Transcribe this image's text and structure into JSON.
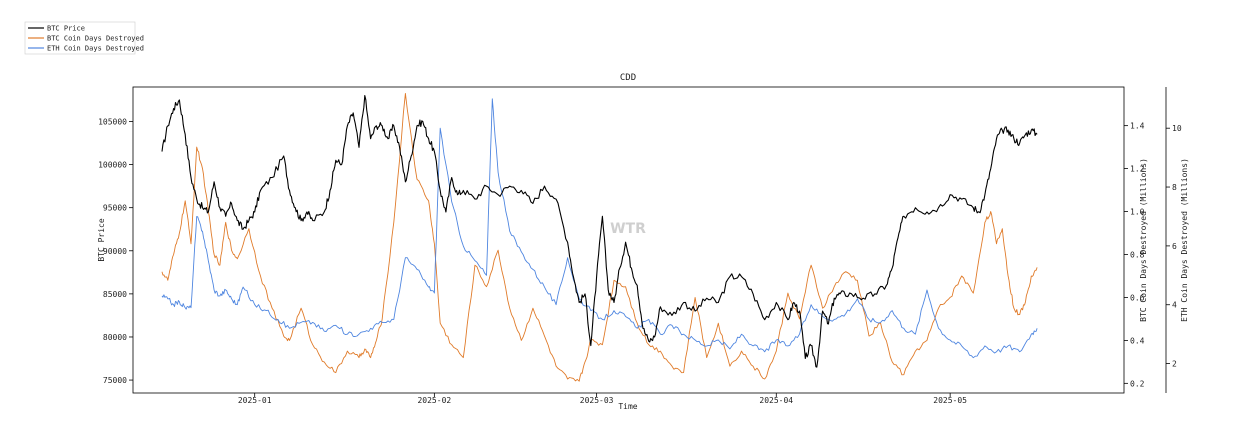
{
  "chart_data": {
    "type": "line",
    "title": "CDD",
    "xlabel": "Time",
    "watermark": "WTR",
    "x_ticks": [
      "2025-01",
      "2025-02",
      "2025-03",
      "2025-04",
      "2025-05"
    ],
    "x_range": [
      "2024-12-11",
      "2025-05-31"
    ],
    "axes": {
      "left": {
        "label": "BTC Price",
        "range": [
          73500,
          109000
        ],
        "ticks": [
          75000,
          80000,
          85000,
          90000,
          95000,
          100000,
          105000
        ]
      },
      "right1": {
        "label": "BTC Coin Days Destroyed (Millions)",
        "range": [
          0.155,
          1.58
        ],
        "ticks": [
          0.2,
          0.4,
          0.6,
          0.8,
          1.0,
          1.2,
          1.4
        ]
      },
      "right2": {
        "label": "ETH Coin Days Destroyed (Millions)",
        "range": [
          1.0,
          11.4
        ],
        "ticks": [
          2,
          4,
          6,
          8,
          10
        ]
      }
    },
    "legend": {
      "placement": "top-left",
      "entries": [
        "BTC Price",
        "BTC Coin Days Destroyed",
        "ETH Coin Days Destroyed"
      ]
    },
    "series": [
      {
        "name": "BTC Price",
        "axis": "left",
        "color": "#000000",
        "x": [
          "2024-12-16",
          "2024-12-17",
          "2024-12-18",
          "2024-12-19",
          "2024-12-20",
          "2024-12-21",
          "2024-12-22",
          "2024-12-23",
          "2024-12-24",
          "2024-12-25",
          "2024-12-26",
          "2024-12-27",
          "2024-12-28",
          "2024-12-29",
          "2024-12-30",
          "2024-12-31",
          "2025-01-01",
          "2025-01-02",
          "2025-01-04",
          "2025-01-06",
          "2025-01-07",
          "2025-01-08",
          "2025-01-09",
          "2025-01-10",
          "2025-01-11",
          "2025-01-13",
          "2025-01-14",
          "2025-01-15",
          "2025-01-16",
          "2025-01-17",
          "2025-01-18",
          "2025-01-19",
          "2025-01-20",
          "2025-01-21",
          "2025-01-22",
          "2025-01-23",
          "2025-01-24",
          "2025-01-25",
          "2025-01-26",
          "2025-01-27",
          "2025-01-28",
          "2025-01-29",
          "2025-01-30",
          "2025-01-31",
          "2025-02-01",
          "2025-02-02",
          "2025-02-03",
          "2025-02-04",
          "2025-02-05",
          "2025-02-06",
          "2025-02-08",
          "2025-02-10",
          "2025-02-12",
          "2025-02-14",
          "2025-02-16",
          "2025-02-18",
          "2025-02-20",
          "2025-02-22",
          "2025-02-24",
          "2025-02-25",
          "2025-02-26",
          "2025-02-27",
          "2025-02-28",
          "2025-03-01",
          "2025-03-02",
          "2025-03-03",
          "2025-03-04",
          "2025-03-05",
          "2025-03-06",
          "2025-03-07",
          "2025-03-08",
          "2025-03-09",
          "2025-03-10",
          "2025-03-11",
          "2025-03-12",
          "2025-03-14",
          "2025-03-16",
          "2025-03-18",
          "2025-03-20",
          "2025-03-22",
          "2025-03-24",
          "2025-03-26",
          "2025-03-28",
          "2025-03-30",
          "2025-04-01",
          "2025-04-03",
          "2025-04-04",
          "2025-04-05",
          "2025-04-06",
          "2025-04-07",
          "2025-04-08",
          "2025-04-09",
          "2025-04-10",
          "2025-04-11",
          "2025-04-12",
          "2025-04-14",
          "2025-04-16",
          "2025-04-18",
          "2025-04-20",
          "2025-04-21",
          "2025-04-22",
          "2025-04-23",
          "2025-04-25",
          "2025-04-27",
          "2025-04-29",
          "2025-05-01",
          "2025-05-03",
          "2025-05-05",
          "2025-05-06",
          "2025-05-07",
          "2025-05-08",
          "2025-05-09",
          "2025-05-10",
          "2025-05-11",
          "2025-05-12",
          "2025-05-13",
          "2025-05-14",
          "2025-05-15",
          "2025-05-16"
        ],
        "values": [
          101500,
          104500,
          106500,
          107500,
          103500,
          98500,
          96000,
          95000,
          94500,
          98000,
          95000,
          94000,
          95500,
          93500,
          92500,
          93500,
          94500,
          97000,
          98500,
          101000,
          97000,
          95000,
          93500,
          94500,
          93500,
          94500,
          97000,
          100500,
          100000,
          104500,
          106000,
          102000,
          108000,
          103000,
          104500,
          104500,
          103000,
          104500,
          102000,
          98000,
          101000,
          104500,
          105000,
          103000,
          101500,
          97000,
          94500,
          98500,
          96500,
          97000,
          96000,
          97500,
          96500,
          97500,
          97000,
          95500,
          97500,
          96000,
          91000,
          87000,
          84000,
          85000,
          79000,
          87000,
          94000,
          85500,
          84000,
          88000,
          91000,
          88000,
          86000,
          81000,
          79500,
          80000,
          83500,
          82500,
          84000,
          83000,
          84500,
          84000,
          87000,
          87000,
          85000,
          82000,
          84000,
          82000,
          84000,
          83000,
          77500,
          79000,
          76500,
          83000,
          81500,
          84500,
          85000,
          85000,
          84500,
          85000,
          86000,
          88000,
          91500,
          94000,
          95000,
          94500,
          95000,
          96500,
          96000,
          95000,
          94500,
          96500,
          99500,
          103000,
          104000,
          104000,
          103000,
          102500,
          103500,
          104000,
          103500
        ]
      },
      {
        "name": "BTC Coin Days Destroyed",
        "axis": "right1",
        "color": "#e07b2a",
        "x": [
          "2024-12-16",
          "2024-12-17",
          "2024-12-18",
          "2024-12-19",
          "2024-12-20",
          "2024-12-21",
          "2024-12-22",
          "2024-12-23",
          "2024-12-24",
          "2024-12-25",
          "2024-12-26",
          "2024-12-27",
          "2024-12-28",
          "2024-12-29",
          "2024-12-31",
          "2025-01-02",
          "2025-01-04",
          "2025-01-06",
          "2025-01-07",
          "2025-01-09",
          "2025-01-11",
          "2025-01-13",
          "2025-01-15",
          "2025-01-17",
          "2025-01-19",
          "2025-01-20",
          "2025-01-21",
          "2025-01-22",
          "2025-01-23",
          "2025-01-25",
          "2025-01-27",
          "2025-01-29",
          "2025-01-31",
          "2025-02-01",
          "2025-02-02",
          "2025-02-04",
          "2025-02-06",
          "2025-02-08",
          "2025-02-10",
          "2025-02-12",
          "2025-02-14",
          "2025-02-16",
          "2025-02-18",
          "2025-02-20",
          "2025-02-22",
          "2025-02-24",
          "2025-02-26",
          "2025-02-27",
          "2025-02-28",
          "2025-03-02",
          "2025-03-04",
          "2025-03-06",
          "2025-03-08",
          "2025-03-10",
          "2025-03-12",
          "2025-03-14",
          "2025-03-16",
          "2025-03-18",
          "2025-03-20",
          "2025-03-22",
          "2025-03-24",
          "2025-03-26",
          "2025-03-28",
          "2025-03-30",
          "2025-04-01",
          "2025-04-03",
          "2025-04-05",
          "2025-04-07",
          "2025-04-09",
          "2025-04-11",
          "2025-04-13",
          "2025-04-15",
          "2025-04-17",
          "2025-04-19",
          "2025-04-21",
          "2025-04-23",
          "2025-04-25",
          "2025-04-27",
          "2025-04-29",
          "2025-05-01",
          "2025-05-03",
          "2025-05-05",
          "2025-05-07",
          "2025-05-08",
          "2025-05-09",
          "2025-05-10",
          "2025-05-11",
          "2025-05-12",
          "2025-05-13",
          "2025-05-14",
          "2025-05-15",
          "2025-05-16"
        ],
        "values": [
          0.72,
          0.68,
          0.8,
          0.9,
          1.05,
          0.85,
          1.3,
          1.2,
          1.0,
          0.8,
          0.75,
          0.95,
          0.82,
          0.78,
          0.92,
          0.7,
          0.55,
          0.42,
          0.4,
          0.55,
          0.38,
          0.3,
          0.25,
          0.35,
          0.32,
          0.36,
          0.32,
          0.4,
          0.5,
          0.95,
          1.55,
          1.15,
          1.05,
          0.85,
          0.48,
          0.38,
          0.32,
          0.75,
          0.65,
          0.82,
          0.55,
          0.4,
          0.55,
          0.42,
          0.28,
          0.22,
          0.21,
          0.3,
          0.4,
          0.38,
          0.68,
          0.65,
          0.48,
          0.38,
          0.35,
          0.28,
          0.25,
          0.6,
          0.32,
          0.48,
          0.28,
          0.35,
          0.28,
          0.22,
          0.35,
          0.62,
          0.5,
          0.75,
          0.55,
          0.65,
          0.72,
          0.68,
          0.42,
          0.48,
          0.3,
          0.24,
          0.35,
          0.4,
          0.55,
          0.6,
          0.7,
          0.62,
          0.95,
          1.0,
          0.85,
          0.92,
          0.7,
          0.55,
          0.52,
          0.58,
          0.7,
          0.74
        ]
      },
      {
        "name": "ETH Coin Days Destroyed",
        "axis": "right2",
        "color": "#4f86e0",
        "x": [
          "2024-12-16",
          "2024-12-17",
          "2024-12-18",
          "2024-12-19",
          "2024-12-20",
          "2024-12-21",
          "2024-12-22",
          "2024-12-23",
          "2024-12-24",
          "2024-12-25",
          "2024-12-26",
          "2024-12-27",
          "2024-12-28",
          "2024-12-29",
          "2024-12-30",
          "2025-01-01",
          "2025-01-03",
          "2025-01-05",
          "2025-01-07",
          "2025-01-09",
          "2025-01-11",
          "2025-01-13",
          "2025-01-15",
          "2025-01-17",
          "2025-01-19",
          "2025-01-21",
          "2025-01-23",
          "2025-01-25",
          "2025-01-27",
          "2025-01-29",
          "2025-01-31",
          "2025-02-01",
          "2025-02-02",
          "2025-02-04",
          "2025-02-06",
          "2025-02-08",
          "2025-02-10",
          "2025-02-11",
          "2025-02-12",
          "2025-02-14",
          "2025-02-16",
          "2025-02-18",
          "2025-02-20",
          "2025-02-22",
          "2025-02-24",
          "2025-02-26",
          "2025-02-28",
          "2025-03-02",
          "2025-03-04",
          "2025-03-06",
          "2025-03-08",
          "2025-03-10",
          "2025-03-12",
          "2025-03-14",
          "2025-03-16",
          "2025-03-18",
          "2025-03-20",
          "2025-03-22",
          "2025-03-24",
          "2025-03-26",
          "2025-03-28",
          "2025-03-30",
          "2025-04-01",
          "2025-04-03",
          "2025-04-05",
          "2025-04-07",
          "2025-04-09",
          "2025-04-11",
          "2025-04-13",
          "2025-04-15",
          "2025-04-17",
          "2025-04-19",
          "2025-04-21",
          "2025-04-23",
          "2025-04-25",
          "2025-04-27",
          "2025-04-29",
          "2025-05-01",
          "2025-05-03",
          "2025-05-05",
          "2025-05-07",
          "2025-05-09",
          "2025-05-11",
          "2025-05-13",
          "2025-05-15",
          "2025-05-16"
        ],
        "values": [
          4.3,
          4.2,
          4.0,
          4.1,
          3.9,
          3.9,
          7.0,
          6.5,
          5.5,
          4.5,
          4.3,
          4.5,
          4.2,
          4.0,
          4.6,
          4.0,
          3.8,
          3.5,
          3.2,
          3.4,
          3.4,
          3.1,
          3.3,
          3.0,
          3.0,
          3.2,
          3.4,
          3.5,
          5.6,
          5.2,
          4.6,
          4.4,
          10.0,
          7.5,
          6.0,
          5.5,
          5.0,
          11.0,
          8.5,
          6.5,
          5.8,
          5.2,
          4.6,
          4.0,
          5.6,
          4.2,
          3.8,
          3.5,
          3.8,
          3.6,
          3.2,
          3.5,
          3.0,
          3.3,
          3.0,
          2.8,
          2.6,
          2.8,
          2.5,
          3.0,
          2.6,
          2.4,
          2.8,
          2.6,
          3.0,
          4.0,
          3.6,
          3.5,
          3.7,
          4.2,
          3.5,
          3.4,
          3.8,
          3.2,
          3.0,
          4.5,
          3.2,
          2.8,
          2.6,
          2.2,
          2.6,
          2.4,
          2.6,
          2.4,
          3.0,
          3.2
        ]
      }
    ]
  }
}
